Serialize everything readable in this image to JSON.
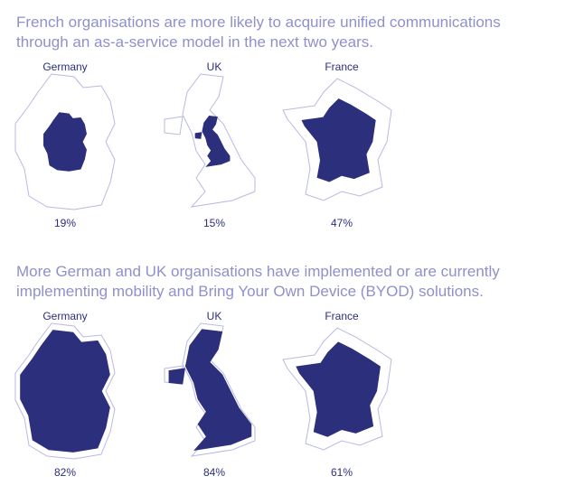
{
  "chart_data": [
    {
      "type": "proportional-map",
      "title": "French organisations are more likely to acquire unified communications through an as-a-service model in the next two years.",
      "categories": [
        "Germany",
        "UK",
        "France"
      ],
      "values": [
        19,
        15,
        47
      ],
      "value_labels": [
        "19%",
        "15%",
        "47%"
      ],
      "color": "#2b2f7c"
    },
    {
      "type": "proportional-map",
      "title": "More German and UK organisations have implemented or are currently implementing mobility and Bring Your Own Device (BYOD) solutions.",
      "categories": [
        "Germany",
        "UK",
        "France"
      ],
      "values": [
        82,
        84,
        61
      ],
      "value_labels": [
        "82%",
        "84%",
        "61%"
      ],
      "color": "#2b2f7c"
    }
  ]
}
